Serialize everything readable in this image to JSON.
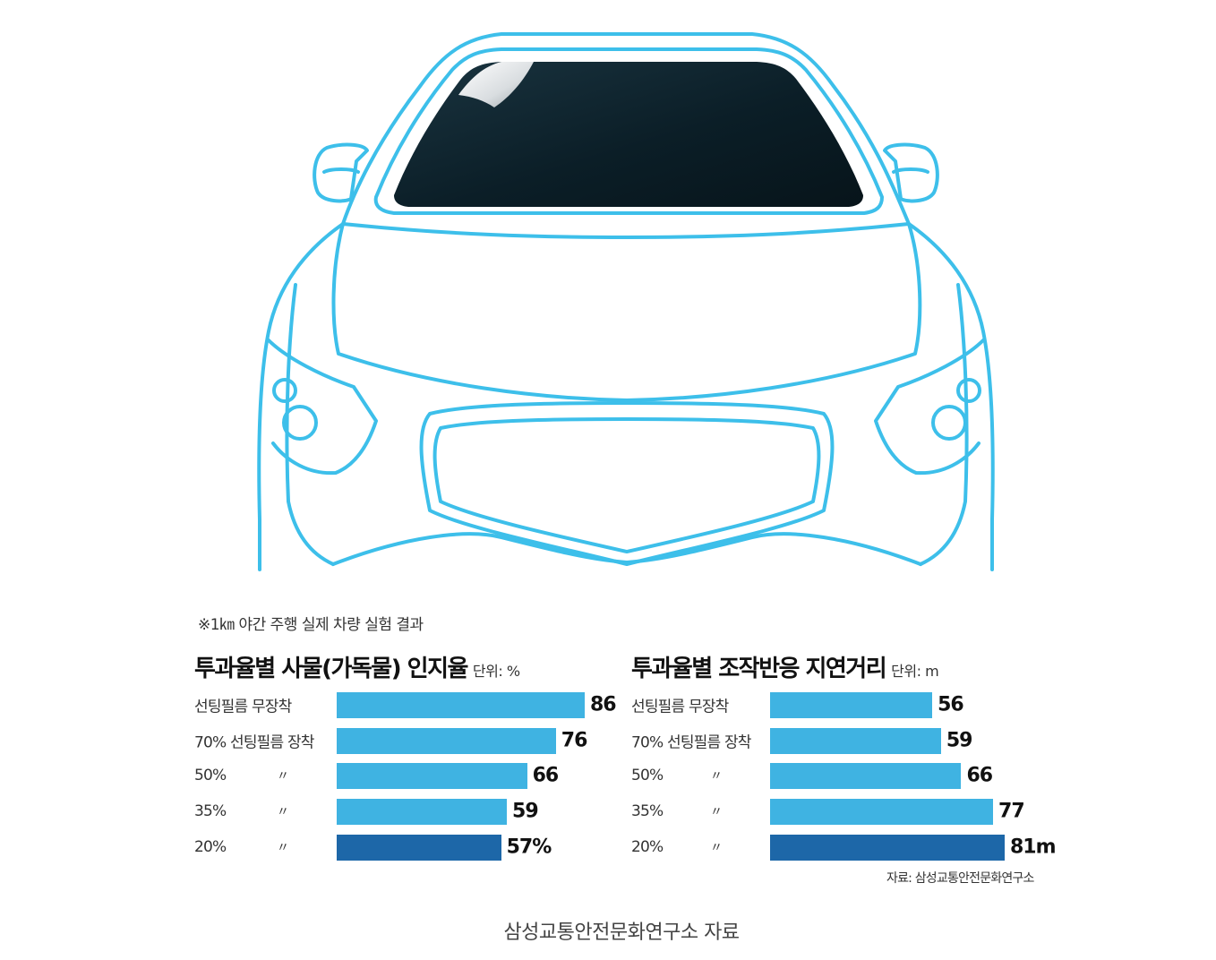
{
  "colors": {
    "car_outline": "#3dbfea",
    "bar_light": "#3fb3e2",
    "bar_dark": "#1d67a8",
    "windshield": "#0b1e27"
  },
  "illustration": {
    "subject": "car-front-outline-with-tinted-windshield"
  },
  "note": "※1㎞ 야간 주행 실제 차량 실험 결과",
  "chart_data": [
    {
      "type": "bar",
      "orientation": "horizontal",
      "title": "투과율별 사물(가독물) 인지율",
      "unit_label": "단위: %",
      "categories": [
        "선팅필름 무장착",
        "70% 선팅필름 장착",
        "50%",
        "35%",
        "20%"
      ],
      "ditto": [
        "",
        "",
        "〃",
        "〃",
        "〃"
      ],
      "values": [
        86,
        76,
        66,
        59,
        57
      ],
      "value_labels": [
        "86",
        "76",
        "66",
        "59",
        "57%"
      ],
      "highlight": [
        false,
        false,
        false,
        false,
        true
      ]
    },
    {
      "type": "bar",
      "orientation": "horizontal",
      "title": "투과율별 조작반응 지연거리",
      "unit_label": "단위: m",
      "categories": [
        "선팅필름 무장착",
        "70% 선팅필름 장착",
        "50%",
        "35%",
        "20%"
      ],
      "ditto": [
        "",
        "",
        "〃",
        "〃",
        "〃"
      ],
      "values": [
        56,
        59,
        66,
        77,
        81
      ],
      "value_labels": [
        "56",
        "59",
        "66",
        "77",
        "81m"
      ],
      "highlight": [
        false,
        false,
        false,
        false,
        true
      ]
    }
  ],
  "source": "자료: 삼성교통안전문화연구소",
  "caption": "삼성교통안전문화연구소 자료"
}
